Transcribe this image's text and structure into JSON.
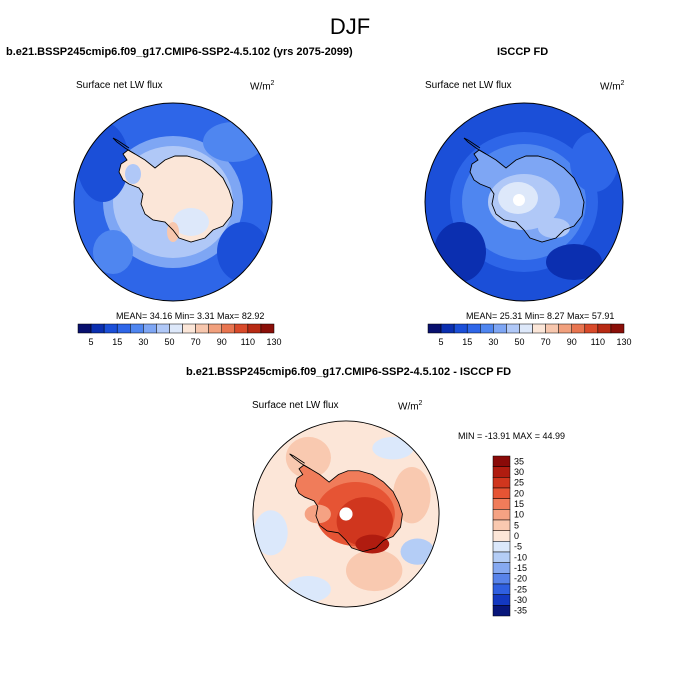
{
  "season": "DJF",
  "panels": [
    {
      "title": "b.e21.BSSP245cmip6.f09_g17.CMIP6-SSP2-4.5.102 (yrs 2075-2099)",
      "variable": "Surface net LW flux",
      "units_base": "W/m",
      "units_exp": "2",
      "stats": "MEAN=  34.16  Min=   3.31  Max=  82.92",
      "colorbar_ticks": [
        "5",
        "15",
        "30",
        "50",
        "70",
        "90",
        "110",
        "130"
      ]
    },
    {
      "title": "ISCCP FD",
      "variable": "Surface net LW flux",
      "units_base": "W/m",
      "units_exp": "2",
      "stats": "MEAN=  25.31  Min=   8.27  Max=  57.91",
      "colorbar_ticks": [
        "5",
        "15",
        "30",
        "50",
        "70",
        "90",
        "110",
        "130"
      ]
    },
    {
      "title": "b.e21.BSSP245cmip6.f09_g17.CMIP6-SSP2-4.5.102 - ISCCP FD",
      "variable": "Surface net LW flux",
      "units_base": "W/m",
      "units_exp": "2",
      "stats": "MIN = -13.91 MAX =  44.99",
      "colorbar_ticks": [
        "35",
        "30",
        "25",
        "20",
        "15",
        "10",
        "5",
        "0",
        "-5",
        "-10",
        "-15",
        "-20",
        "-25",
        "-30",
        "-35"
      ]
    }
  ],
  "colors": {
    "abs_scale": [
      "#08106e",
      "#0b2fb0",
      "#1b4fd8",
      "#2e66e8",
      "#4f86f0",
      "#7ea6f4",
      "#b0c8f7",
      "#dde8fa",
      "#fbe6d8",
      "#f7c7ae",
      "#f1a07d",
      "#e87550",
      "#d94a2a",
      "#b82a14",
      "#8a0f08"
    ],
    "diff_scale": [
      "#8a0a08",
      "#b01c10",
      "#d0361e",
      "#e65434",
      "#f07c5a",
      "#f5a283",
      "#f9c9b0",
      "#fce6d8",
      "#dbe8fb",
      "#b4cdf6",
      "#86a9f1",
      "#5883ea",
      "#2f5fe0",
      "#1338c0",
      "#08167a"
    ],
    "coast": "#000000"
  }
}
